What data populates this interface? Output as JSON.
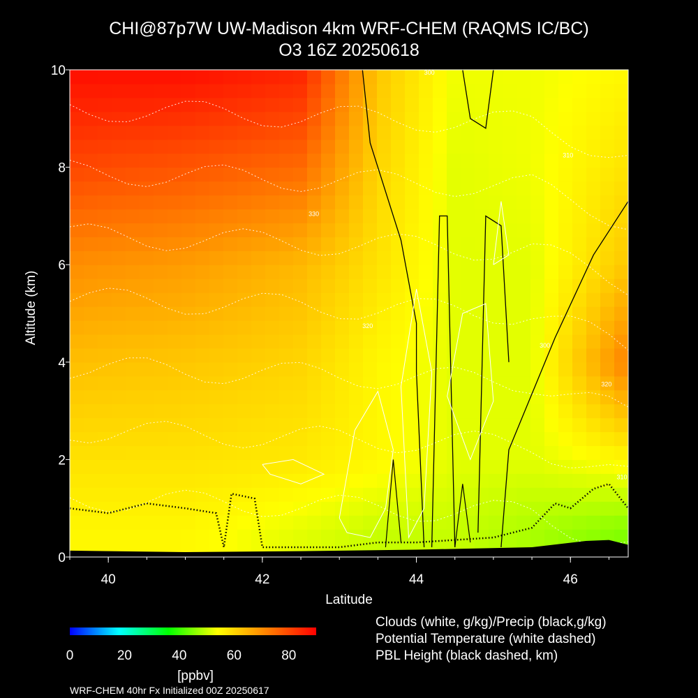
{
  "title_line1": "CHI@87p7W UW-Madison 4km WRF-CHEM (RAQMS IC/BC)",
  "title_line2": "O3 16Z 20250618",
  "footer": "WRF-CHEM 40hr  Fx Initialized 00Z 20250617",
  "legend": [
    "Clouds (white, g/kg)/Precip (black,g/kg)",
    "Potential Temperature (white dashed)",
    "PBL Height (black dashed, km)"
  ],
  "colorbar": {
    "unit": "[ppbv]",
    "ticks": [
      "0",
      "20",
      "40",
      "60",
      "80"
    ],
    "min": 0,
    "max": 90,
    "colors": [
      "#0000ff",
      "#00ffff",
      "#00ff00",
      "#ffff00",
      "#ff8000",
      "#ff0000"
    ]
  },
  "chart_data": {
    "type": "heatmap",
    "variable": "O3",
    "xlabel": "Latitude",
    "ylabel": "Altitude (km)",
    "xlim": [
      39.5,
      46.75
    ],
    "ylim": [
      0,
      10
    ],
    "xticks": [
      "40",
      "42",
      "44",
      "46"
    ],
    "yticks": [
      "0",
      "2",
      "4",
      "6",
      "8",
      "10"
    ],
    "o3_levels_by_altitude": [
      {
        "altitude_km": 0.5,
        "ppbv": [
          55,
          55,
          52,
          50,
          50,
          48,
          45
        ]
      },
      {
        "altitude_km": 2,
        "ppbv": [
          58,
          58,
          57,
          55,
          52,
          52,
          55
        ]
      },
      {
        "altitude_km": 4,
        "ppbv": [
          63,
          62,
          60,
          55,
          52,
          52,
          72
        ]
      },
      {
        "altitude_km": 6,
        "ppbv": [
          70,
          68,
          64,
          58,
          52,
          52,
          62
        ]
      },
      {
        "altitude_km": 8,
        "ppbv": [
          80,
          78,
          75,
          60,
          52,
          53,
          58
        ]
      },
      {
        "altitude_km": 10,
        "ppbv": [
          88,
          88,
          85,
          62,
          53,
          53,
          55
        ]
      }
    ],
    "o3_level_latitudes": [
      39.5,
      41,
      42.5,
      43.5,
      44.5,
      45.5,
      46.75
    ],
    "potential_temperature_labels": [
      "330",
      "320",
      "320",
      "310",
      "310",
      "300",
      "300"
    ]
  }
}
